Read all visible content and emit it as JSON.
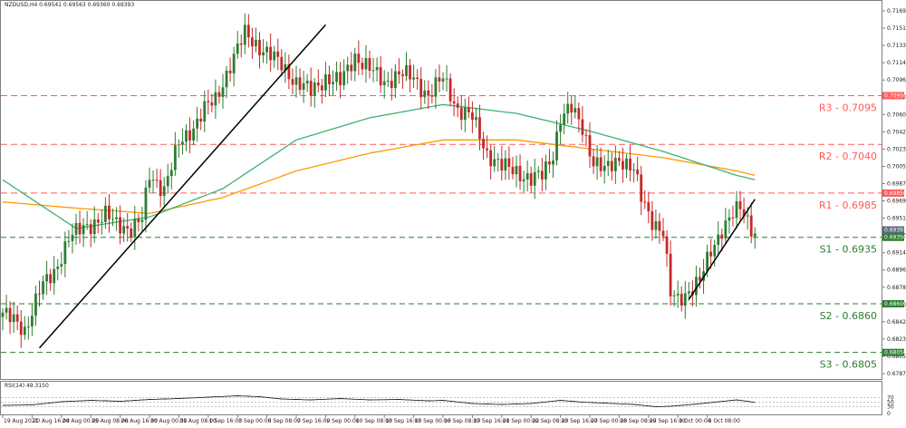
{
  "chart_data": {
    "type": "candlestick",
    "symbol_header": "NZDUSD,H4  0.69541 0.69563 0.69360 0.69393",
    "colors": {
      "bull": "#2e7d32",
      "bear": "#c62828",
      "ma_fast": "#3cb371",
      "ma_slow": "#ff9900",
      "resistance": "#ff5a5a",
      "support": "#2e7d32",
      "trendline": "#000000",
      "rsi_line": "#222222"
    },
    "price_axis": {
      "ylim": [
        0.6776,
        0.7201
      ],
      "ticks": [
        "0.71690",
        "0.71510",
        "0.71330",
        "0.71145",
        "0.70965",
        "0.70780",
        "0.70600",
        "0.70420",
        "0.70235",
        "0.70055",
        "0.69875",
        "0.69690",
        "0.69510",
        "0.69325",
        "0.69145",
        "0.68965",
        "0.68780",
        "0.68600",
        "0.68420",
        "0.68235",
        "0.68055",
        "0.67875"
      ]
    },
    "time_axis": {
      "labels": [
        "19 Aug 2021",
        "20 Aug 16:00",
        "24 Aug 00:00",
        "25 Aug 08:00",
        "26 Aug 16:00",
        "30 Aug 00:00",
        "31 Aug 08:00",
        "1 Sep 16:00",
        "3 Sep 00:00",
        "6 Sep 08:00",
        "7 Sep 16:00",
        "9 Sep 00:00",
        "10 Sep 08:00",
        "13 Sep 16:00",
        "15 Sep 00:00",
        "16 Sep 08:00",
        "17 Sep 16:00",
        "21 Sep 00:00",
        "22 Sep 08:00",
        "23 Sep 16:00",
        "27 Sep 00:00",
        "28 Sep 08:00",
        "29 Sep 16:00",
        "1 Oct 00:00",
        "4 Oct 08:00"
      ],
      "label_index": [
        0,
        8,
        16,
        24,
        32,
        40,
        48,
        56,
        64,
        72,
        80,
        88,
        96,
        104,
        112,
        120,
        128,
        136,
        144,
        152,
        160,
        168,
        176,
        184,
        192
      ]
    },
    "levels": [
      {
        "name": "R3",
        "value": 0.7095,
        "label": "R3 - 0.7095",
        "tag": "0.70950",
        "kind": "resistance"
      },
      {
        "name": "R2",
        "value": 0.704,
        "label": "R2 - 0.7040",
        "tag": "",
        "kind": "resistance"
      },
      {
        "name": "R1",
        "value": 0.6985,
        "label": "R1 - 0.6985",
        "tag": "0.69850",
        "kind": "resistance"
      },
      {
        "name": "S1",
        "value": 0.6935,
        "label": "S1 - 0.6935",
        "tag": "0.69350",
        "kind": "support"
      },
      {
        "name": "S2",
        "value": 0.686,
        "label": "S2 - 0.6860",
        "tag": "0.68600",
        "kind": "support"
      },
      {
        "name": "S3",
        "value": 0.6805,
        "label": "S3 - 0.6805",
        "tag": "0.68050",
        "kind": "support"
      }
    ],
    "current_price_tags": [
      "0.69393",
      "0.69350"
    ],
    "current_price": 0.69393,
    "close_points": [
      [
        0,
        0.685
      ],
      [
        6,
        0.683
      ],
      [
        10,
        0.6875
      ],
      [
        14,
        0.6895
      ],
      [
        18,
        0.6935
      ],
      [
        24,
        0.695
      ],
      [
        28,
        0.696
      ],
      [
        31,
        0.695
      ],
      [
        35,
        0.6945
      ],
      [
        38,
        0.6955
      ],
      [
        40,
        0.7005
      ],
      [
        44,
        0.699
      ],
      [
        48,
        0.704
      ],
      [
        52,
        0.706
      ],
      [
        55,
        0.708
      ],
      [
        58,
        0.709
      ],
      [
        62,
        0.713
      ],
      [
        66,
        0.7165
      ],
      [
        70,
        0.715
      ],
      [
        73,
        0.714
      ],
      [
        76,
        0.713
      ],
      [
        80,
        0.711
      ],
      [
        84,
        0.71
      ],
      [
        88,
        0.7115
      ],
      [
        92,
        0.711
      ],
      [
        96,
        0.714
      ],
      [
        100,
        0.7125
      ],
      [
        104,
        0.711
      ],
      [
        108,
        0.712
      ],
      [
        112,
        0.7115
      ],
      [
        116,
        0.7095
      ],
      [
        120,
        0.7115
      ],
      [
        124,
        0.708
      ],
      [
        128,
        0.707
      ],
      [
        132,
        0.703
      ],
      [
        136,
        0.7015
      ],
      [
        140,
        0.701
      ],
      [
        144,
        0.7
      ],
      [
        147,
        0.7005
      ],
      [
        150,
        0.703
      ],
      [
        152,
        0.707
      ],
      [
        155,
        0.708
      ],
      [
        158,
        0.706
      ],
      [
        161,
        0.702
      ],
      [
        164,
        0.701
      ],
      [
        168,
        0.7025
      ],
      [
        172,
        0.701
      ],
      [
        174,
        0.698
      ],
      [
        177,
        0.6955
      ],
      [
        180,
        0.694
      ],
      [
        182,
        0.687
      ],
      [
        184,
        0.6865
      ],
      [
        187,
        0.6875
      ],
      [
        190,
        0.6885
      ],
      [
        193,
        0.692
      ],
      [
        196,
        0.6945
      ],
      [
        199,
        0.696
      ],
      [
        201,
        0.6968
      ],
      [
        203,
        0.6955
      ],
      [
        205,
        0.6939
      ]
    ],
    "ma_fast_points": [
      [
        0,
        0.7
      ],
      [
        20,
        0.6945
      ],
      [
        40,
        0.6958
      ],
      [
        60,
        0.699
      ],
      [
        80,
        0.7045
      ],
      [
        100,
        0.707
      ],
      [
        120,
        0.7085
      ],
      [
        140,
        0.7075
      ],
      [
        160,
        0.7055
      ],
      [
        180,
        0.7032
      ],
      [
        200,
        0.7005
      ],
      [
        205,
        0.7
      ]
    ],
    "ma_slow_points": [
      [
        0,
        0.6975
      ],
      [
        20,
        0.6968
      ],
      [
        40,
        0.6962
      ],
      [
        60,
        0.698
      ],
      [
        80,
        0.701
      ],
      [
        100,
        0.703
      ],
      [
        120,
        0.7045
      ],
      [
        140,
        0.7045
      ],
      [
        160,
        0.7035
      ],
      [
        180,
        0.7025
      ],
      [
        200,
        0.701
      ],
      [
        205,
        0.7005
      ]
    ],
    "trendlines": [
      {
        "from": [
          10,
          0.681
        ],
        "to": [
          88,
          0.7175
        ]
      },
      {
        "from": [
          187,
          0.6865
        ],
        "to": [
          205,
          0.6978
        ]
      }
    ],
    "rsi": {
      "label": "RSI(14) 49.3150",
      "ylim": [
        0,
        100
      ],
      "ticks": [
        "70",
        "50",
        "30",
        "0"
      ],
      "points": [
        [
          0,
          36
        ],
        [
          8,
          38
        ],
        [
          16,
          52
        ],
        [
          24,
          58
        ],
        [
          32,
          54
        ],
        [
          40,
          62
        ],
        [
          48,
          66
        ],
        [
          56,
          72
        ],
        [
          64,
          78
        ],
        [
          70,
          74
        ],
        [
          76,
          64
        ],
        [
          84,
          60
        ],
        [
          92,
          66
        ],
        [
          100,
          60
        ],
        [
          108,
          62
        ],
        [
          116,
          56
        ],
        [
          120,
          58
        ],
        [
          128,
          44
        ],
        [
          136,
          40
        ],
        [
          144,
          44
        ],
        [
          152,
          58
        ],
        [
          158,
          50
        ],
        [
          164,
          46
        ],
        [
          172,
          40
        ],
        [
          178,
          30
        ],
        [
          182,
          32
        ],
        [
          188,
          40
        ],
        [
          194,
          50
        ],
        [
          200,
          60
        ],
        [
          205,
          49
        ]
      ]
    }
  }
}
